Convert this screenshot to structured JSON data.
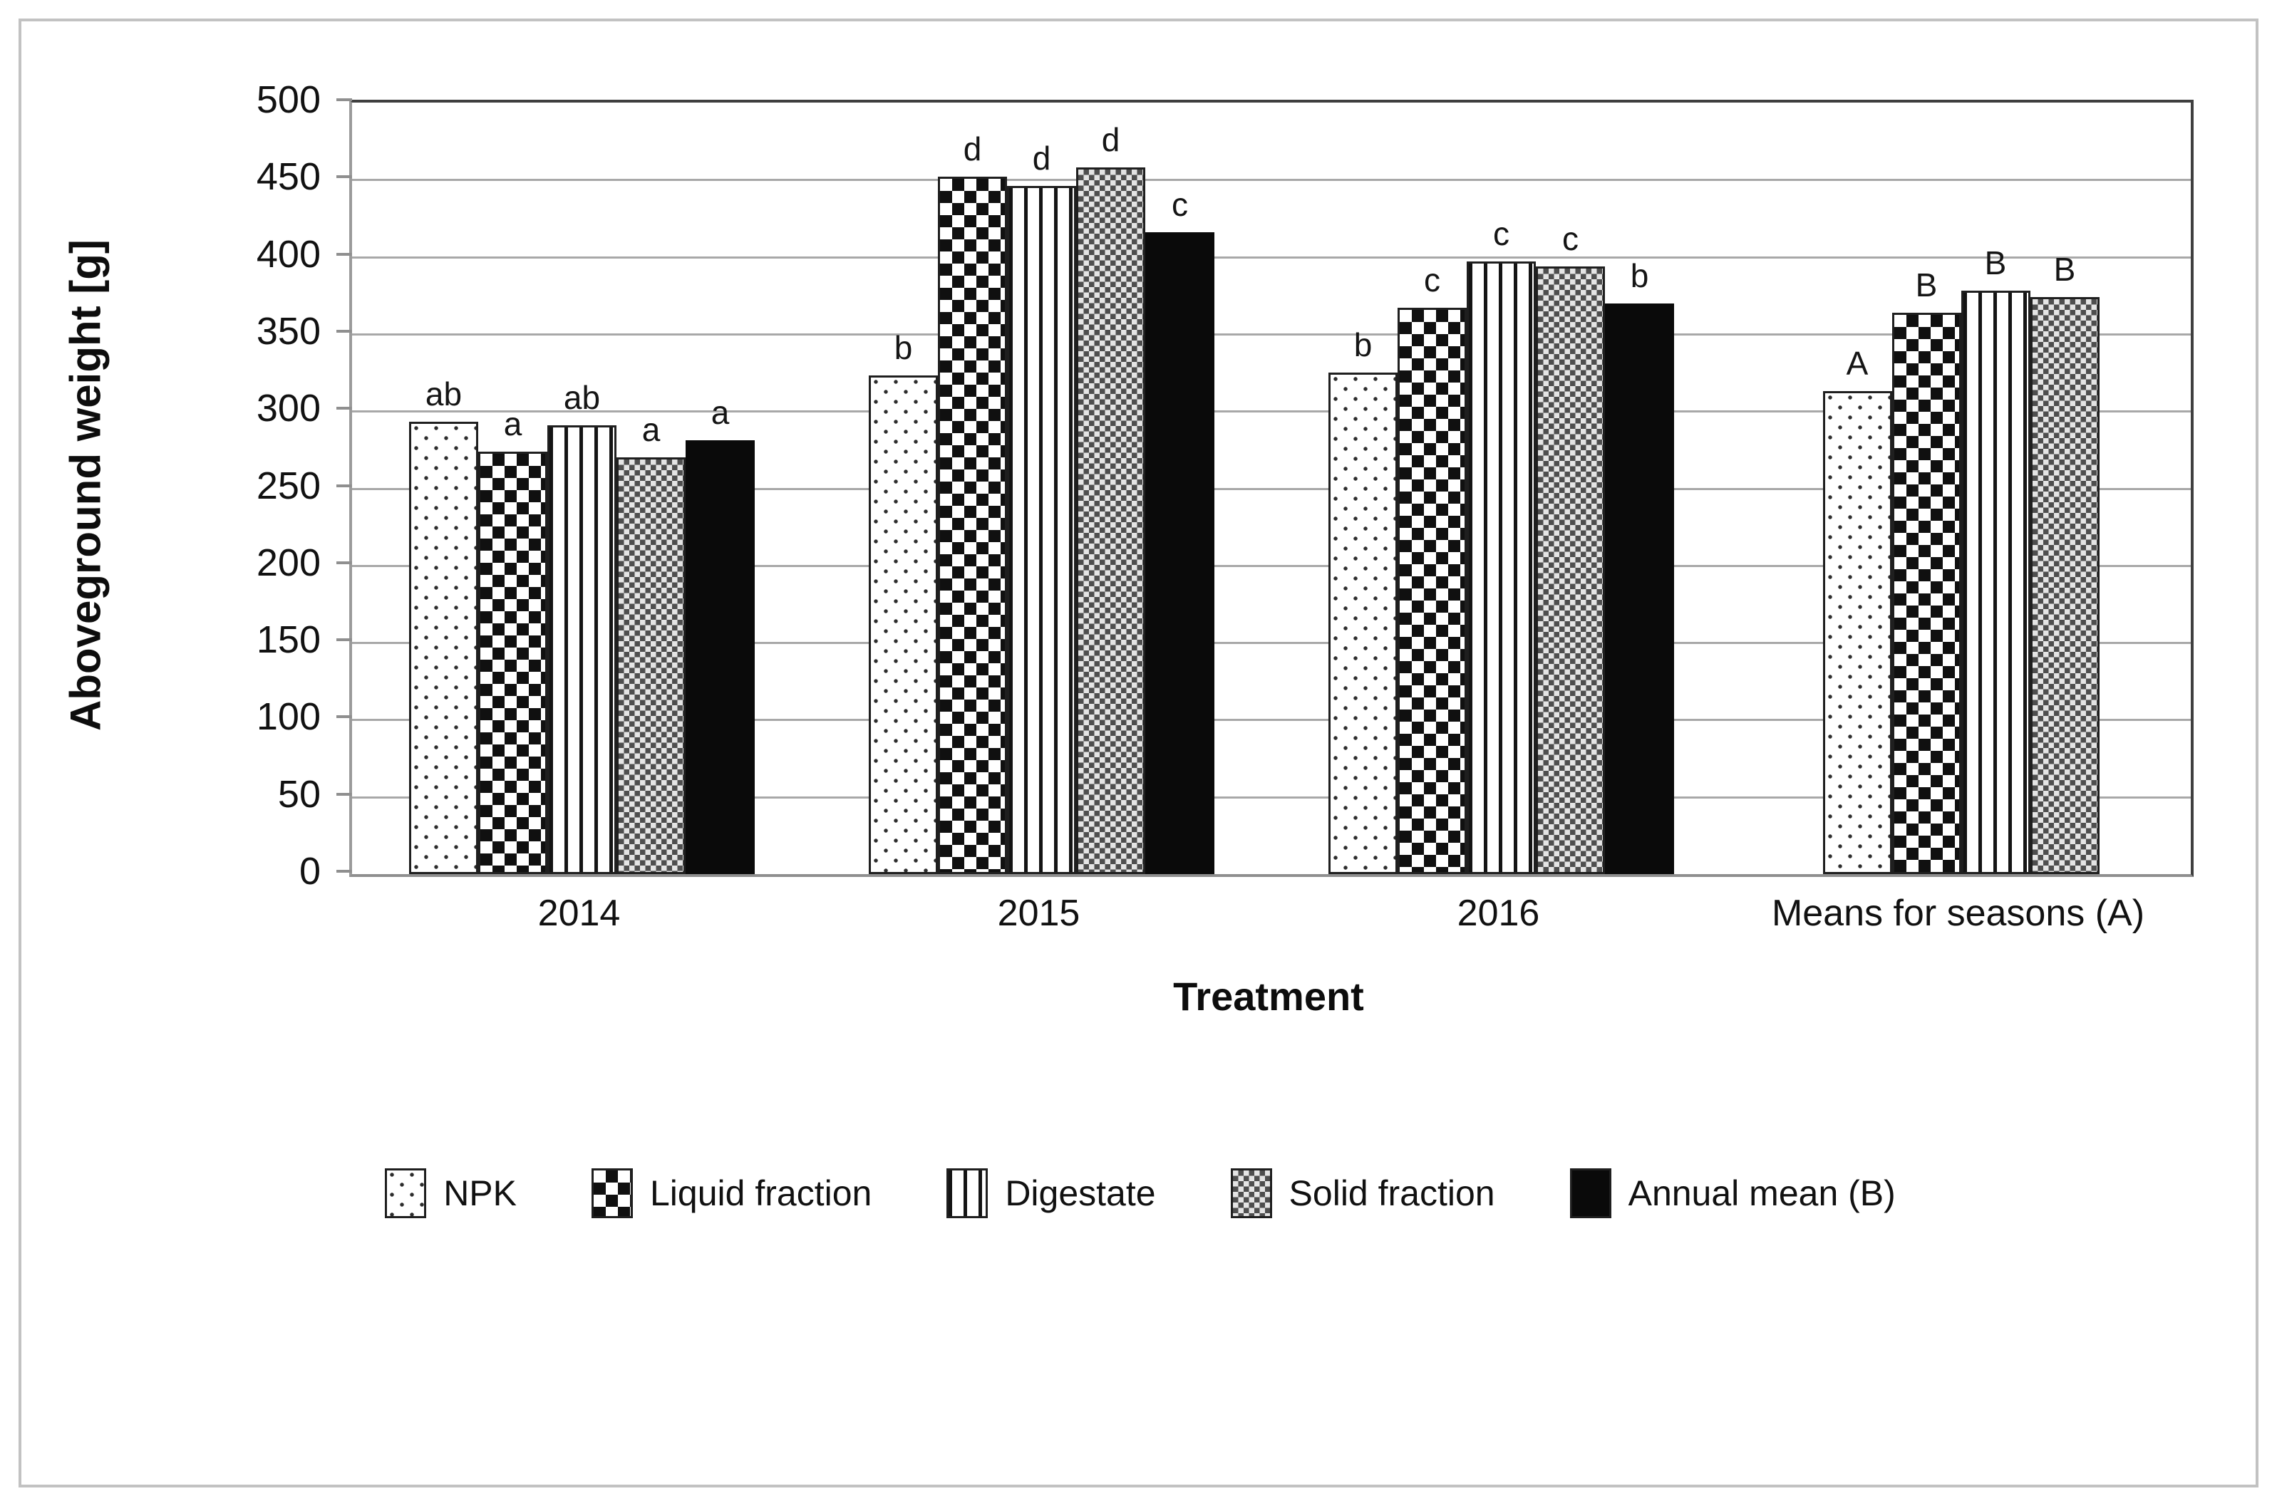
{
  "page": {
    "background_color": "#ffffff",
    "outer_border_color": "#c2c2c2"
  },
  "chart_data": {
    "type": "bar",
    "title": "",
    "ylabel": "Aboveground weight [g]",
    "xlabel": "Treatment",
    "ylim": [
      0,
      500
    ],
    "ytick_step": 50,
    "ytick_labels": [
      "500",
      "450",
      "400",
      "350",
      "300",
      "250",
      "200",
      "150",
      "100",
      "50",
      "0"
    ],
    "grid": "horizontal-gridlines-on",
    "legend_position": "bottom-center",
    "categories": [
      "2014",
      "2015",
      "2016",
      "Means for seasons (A)"
    ],
    "series": [
      {
        "name": "NPK",
        "pattern": "dots-sparse",
        "values": [
          293,
          323,
          325,
          313
        ],
        "sig_letters": [
          "ab",
          "b",
          "b",
          "A"
        ]
      },
      {
        "name": "Liquid fraction",
        "pattern": "checkerboard",
        "values": [
          274,
          452,
          367,
          364
        ],
        "sig_letters": [
          "a",
          "d",
          "c",
          "B"
        ]
      },
      {
        "name": "Digestate",
        "pattern": "vertical-lines",
        "values": [
          291,
          446,
          397,
          378
        ],
        "sig_letters": [
          "ab",
          "d",
          "c",
          "B"
        ]
      },
      {
        "name": "Solid fraction",
        "pattern": "checkerboard-fine",
        "values": [
          270,
          458,
          394,
          374
        ],
        "sig_letters": [
          "a",
          "d",
          "c",
          "B"
        ]
      },
      {
        "name": "Annual mean (B)",
        "pattern": "solid-black",
        "values": [
          281,
          416,
          370,
          null
        ],
        "sig_letters": [
          "a",
          "c",
          "b",
          null
        ]
      }
    ],
    "colors": {
      "bar_outline": "#1f1f1f",
      "solid_bar_fill": "#0a0a0a",
      "gridline": "#a8a8a8",
      "plot_frame_dark": "#3f3f3f",
      "plot_frame_light": "#9a9a9a",
      "text": "#111111"
    }
  }
}
